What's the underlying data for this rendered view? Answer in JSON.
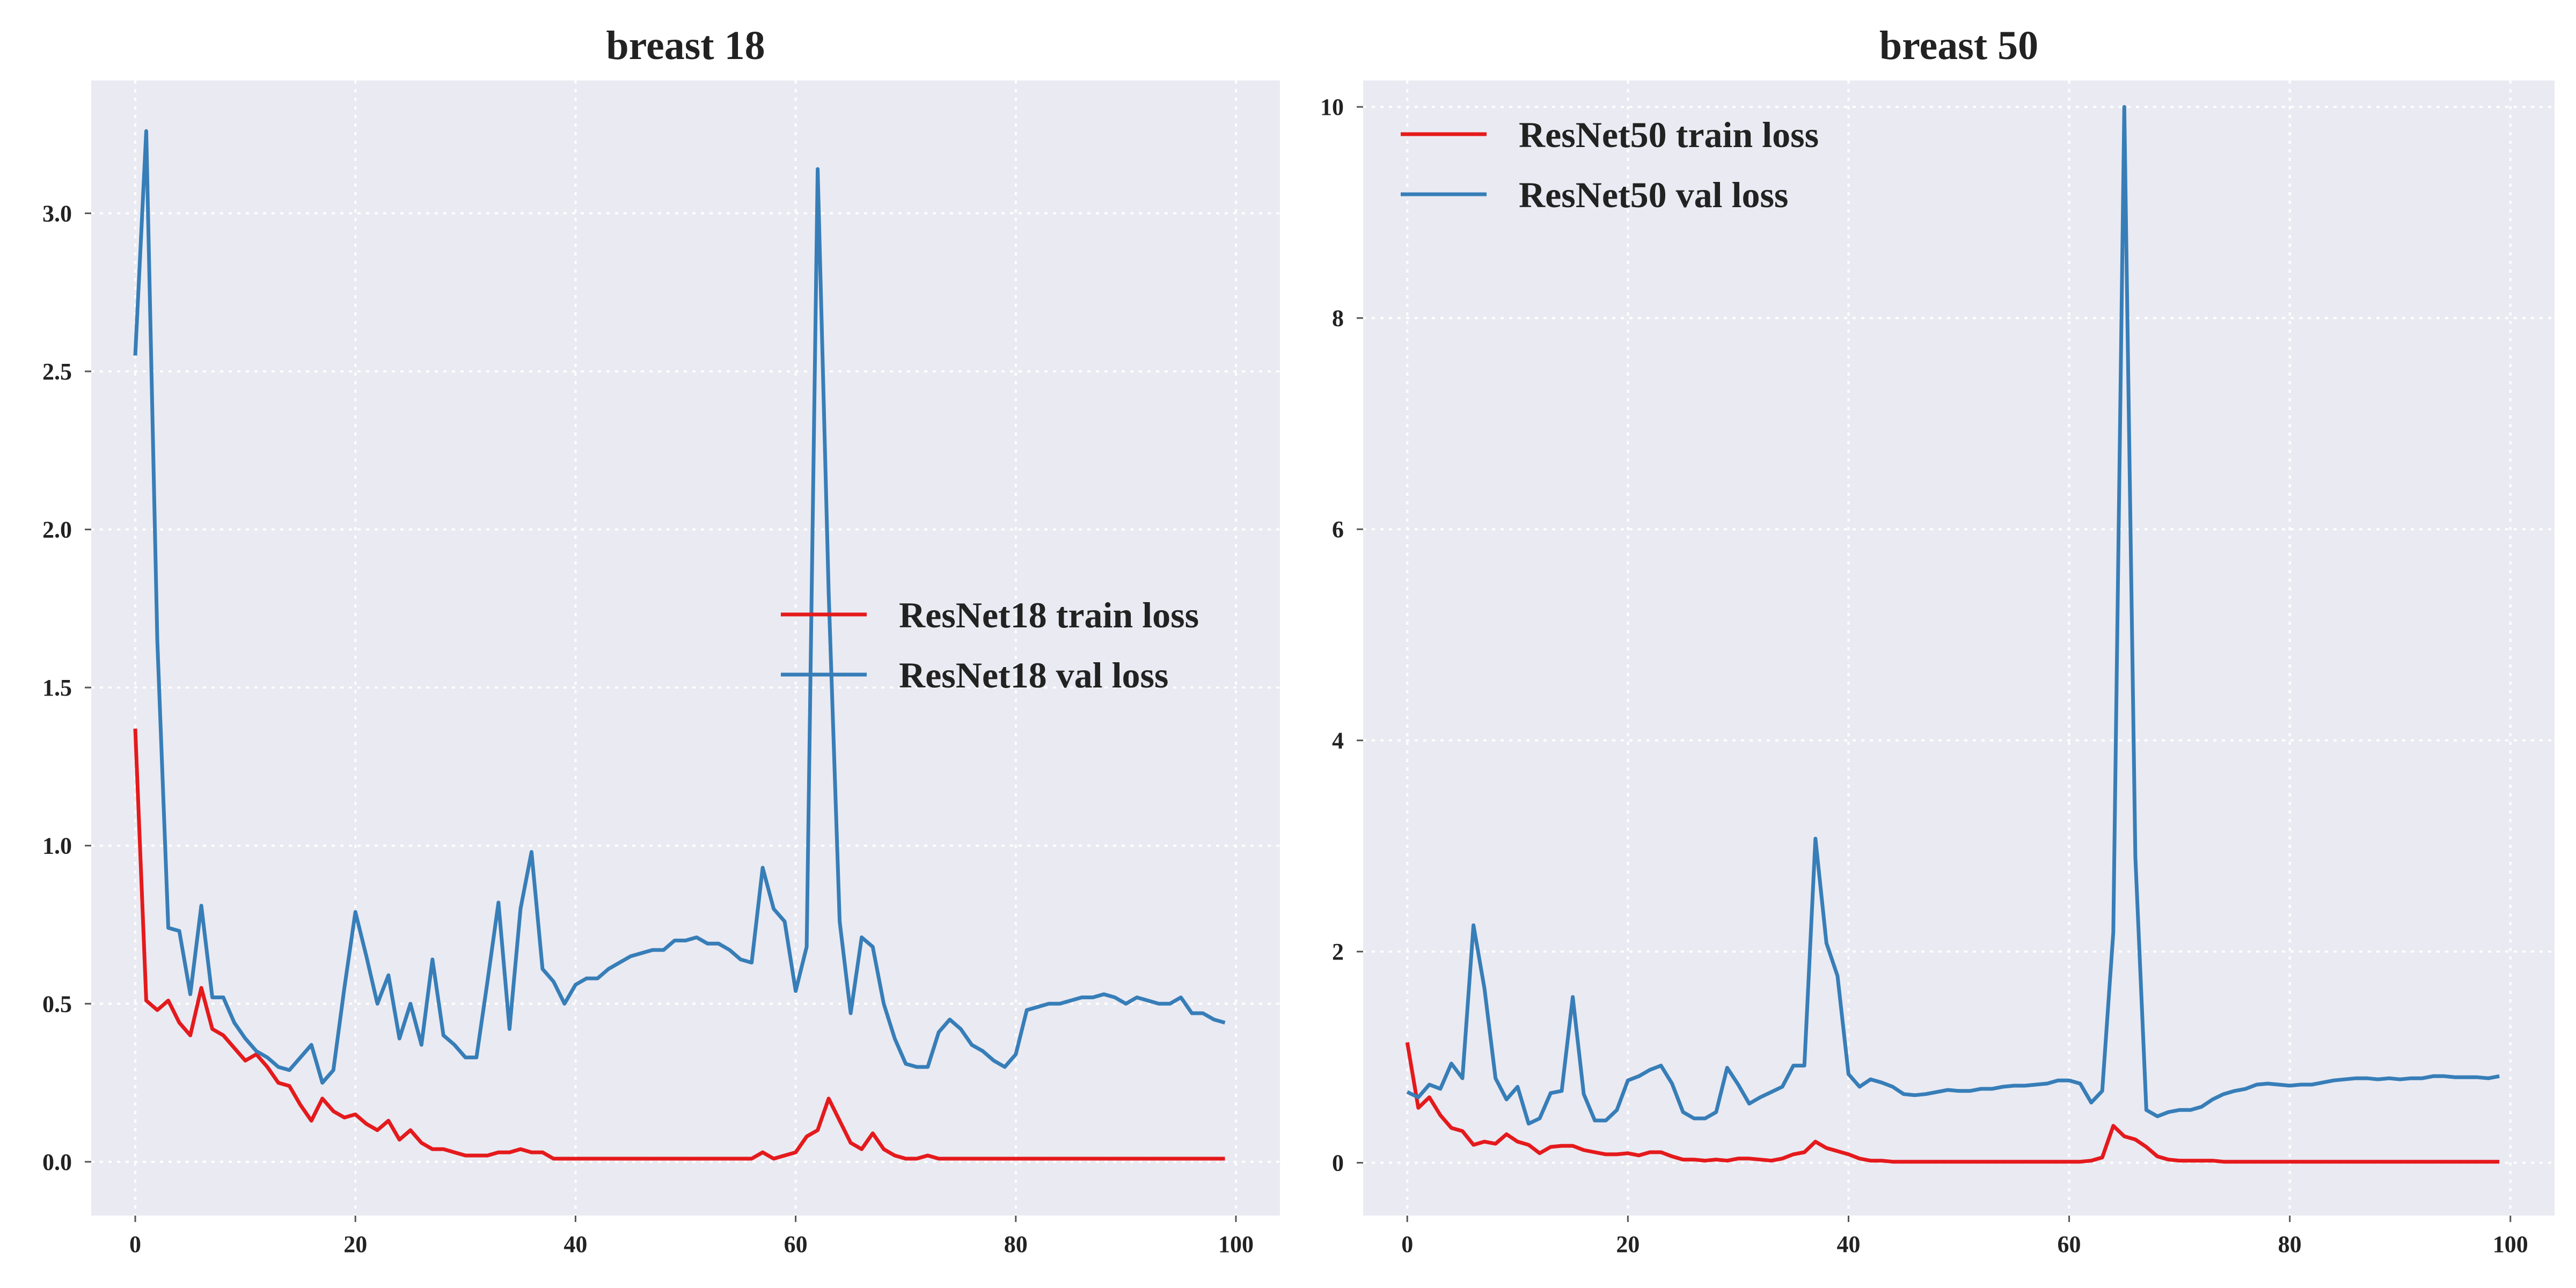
{
  "colors": {
    "train": "#e41a1c",
    "val": "#377eb8",
    "background": "#eaeaf2",
    "grid": "#ffffff"
  },
  "chart_data": [
    {
      "type": "line",
      "title": "breast 18",
      "xlabel": "",
      "ylabel": "",
      "xlim": [
        -4,
        104
      ],
      "ylim": [
        -0.17,
        3.42
      ],
      "xticks": [
        0,
        20,
        40,
        60,
        80,
        100
      ],
      "xtick_labels": [
        "0",
        "20",
        "40",
        "60",
        "80",
        "100"
      ],
      "yticks": [
        0,
        0.5,
        1.0,
        1.5,
        2.0,
        2.5,
        3.0
      ],
      "ytick_labels": [
        "0.0",
        "0.5",
        "1.0",
        "1.5",
        "2.0",
        "2.5",
        "3.0"
      ],
      "grid": true,
      "legend_position": "center-right",
      "series": [
        {
          "name": "ResNet18 train loss",
          "color": "#e41a1c",
          "values": [
            1.37,
            0.51,
            0.48,
            0.51,
            0.44,
            0.4,
            0.55,
            0.42,
            0.4,
            0.36,
            0.32,
            0.34,
            0.3,
            0.25,
            0.24,
            0.18,
            0.13,
            0.2,
            0.16,
            0.14,
            0.15,
            0.12,
            0.1,
            0.13,
            0.07,
            0.1,
            0.06,
            0.04,
            0.04,
            0.03,
            0.02,
            0.02,
            0.02,
            0.03,
            0.03,
            0.04,
            0.03,
            0.03,
            0.01,
            0.01,
            0.01,
            0.01,
            0.01,
            0.01,
            0.01,
            0.01,
            0.01,
            0.01,
            0.01,
            0.01,
            0.01,
            0.01,
            0.01,
            0.01,
            0.01,
            0.01,
            0.01,
            0.03,
            0.01,
            0.02,
            0.03,
            0.08,
            0.1,
            0.2,
            0.13,
            0.06,
            0.04,
            0.09,
            0.04,
            0.02,
            0.01,
            0.01,
            0.02,
            0.01,
            0.01,
            0.01,
            0.01,
            0.01,
            0.01,
            0.01,
            0.01,
            0.01,
            0.01,
            0.01,
            0.01,
            0.01,
            0.01,
            0.01,
            0.01,
            0.01,
            0.01,
            0.01,
            0.01,
            0.01,
            0.01,
            0.01,
            0.01,
            0.01,
            0.01,
            0.01
          ]
        },
        {
          "name": "ResNet18 val loss",
          "color": "#377eb8",
          "values": [
            2.55,
            3.26,
            1.65,
            0.74,
            0.73,
            0.53,
            0.81,
            0.52,
            0.52,
            0.44,
            0.39,
            0.35,
            0.33,
            0.3,
            0.29,
            0.33,
            0.37,
            0.25,
            0.29,
            0.55,
            0.79,
            0.65,
            0.5,
            0.59,
            0.39,
            0.5,
            0.37,
            0.64,
            0.4,
            0.37,
            0.33,
            0.33,
            0.57,
            0.82,
            0.42,
            0.8,
            0.98,
            0.61,
            0.57,
            0.5,
            0.56,
            0.58,
            0.58,
            0.61,
            0.63,
            0.65,
            0.66,
            0.67,
            0.67,
            0.7,
            0.7,
            0.71,
            0.69,
            0.69,
            0.67,
            0.64,
            0.63,
            0.93,
            0.8,
            0.76,
            0.54,
            0.68,
            3.14,
            1.8,
            0.76,
            0.47,
            0.71,
            0.68,
            0.5,
            0.39,
            0.31,
            0.3,
            0.3,
            0.41,
            0.45,
            0.42,
            0.37,
            0.35,
            0.32,
            0.3,
            0.34,
            0.48,
            0.49,
            0.5,
            0.5,
            0.51,
            0.52,
            0.52,
            0.53,
            0.52,
            0.5,
            0.52,
            0.51,
            0.5,
            0.5,
            0.52,
            0.47,
            0.47,
            0.45,
            0.44
          ]
        }
      ]
    },
    {
      "type": "line",
      "title": "breast 50",
      "xlabel": "",
      "ylabel": "",
      "xlim": [
        -4,
        104
      ],
      "ylim": [
        -0.5,
        10.25
      ],
      "xticks": [
        0,
        20,
        40,
        60,
        80,
        100
      ],
      "xtick_labels": [
        "0",
        "20",
        "40",
        "60",
        "80",
        "100"
      ],
      "yticks": [
        0,
        2,
        4,
        6,
        8,
        10
      ],
      "ytick_labels": [
        "0",
        "2",
        "4",
        "6",
        "8",
        "10"
      ],
      "grid": true,
      "legend_position": "top-left",
      "series": [
        {
          "name": "ResNet50 train loss",
          "color": "#e41a1c",
          "values": [
            1.14,
            0.52,
            0.62,
            0.45,
            0.33,
            0.3,
            0.17,
            0.2,
            0.18,
            0.27,
            0.2,
            0.17,
            0.09,
            0.15,
            0.16,
            0.16,
            0.12,
            0.1,
            0.08,
            0.08,
            0.09,
            0.07,
            0.1,
            0.1,
            0.06,
            0.03,
            0.03,
            0.02,
            0.03,
            0.02,
            0.04,
            0.04,
            0.03,
            0.02,
            0.04,
            0.08,
            0.1,
            0.2,
            0.14,
            0.11,
            0.08,
            0.04,
            0.02,
            0.02,
            0.01,
            0.01,
            0.01,
            0.01,
            0.01,
            0.01,
            0.01,
            0.01,
            0.01,
            0.01,
            0.01,
            0.01,
            0.01,
            0.01,
            0.01,
            0.01,
            0.01,
            0.01,
            0.02,
            0.05,
            0.35,
            0.25,
            0.22,
            0.15,
            0.06,
            0.03,
            0.02,
            0.02,
            0.02,
            0.02,
            0.01,
            0.01,
            0.01,
            0.01,
            0.01,
            0.01,
            0.01,
            0.01,
            0.01,
            0.01,
            0.01,
            0.01,
            0.01,
            0.01,
            0.01,
            0.01,
            0.01,
            0.01,
            0.01,
            0.01,
            0.01,
            0.01,
            0.01,
            0.01,
            0.01,
            0.01
          ]
        },
        {
          "name": "ResNet50 val loss",
          "color": "#377eb8",
          "values": [
            0.67,
            0.62,
            0.74,
            0.7,
            0.94,
            0.8,
            2.25,
            1.65,
            0.8,
            0.6,
            0.72,
            0.37,
            0.42,
            0.66,
            0.68,
            1.57,
            0.65,
            0.4,
            0.4,
            0.5,
            0.78,
            0.82,
            0.88,
            0.92,
            0.75,
            0.48,
            0.42,
            0.42,
            0.48,
            0.9,
            0.74,
            0.56,
            0.62,
            0.67,
            0.72,
            0.92,
            0.92,
            3.07,
            2.08,
            1.77,
            0.84,
            0.72,
            0.79,
            0.76,
            0.72,
            0.65,
            0.64,
            0.65,
            0.67,
            0.69,
            0.68,
            0.68,
            0.7,
            0.7,
            0.72,
            0.73,
            0.73,
            0.74,
            0.75,
            0.78,
            0.78,
            0.75,
            0.57,
            0.68,
            2.18,
            10.0,
            2.9,
            0.5,
            0.44,
            0.48,
            0.5,
            0.5,
            0.53,
            0.6,
            0.65,
            0.68,
            0.7,
            0.74,
            0.75,
            0.74,
            0.73,
            0.74,
            0.74,
            0.76,
            0.78,
            0.79,
            0.8,
            0.8,
            0.79,
            0.8,
            0.79,
            0.8,
            0.8,
            0.82,
            0.82,
            0.81,
            0.81,
            0.81,
            0.8,
            0.82
          ]
        }
      ]
    }
  ]
}
